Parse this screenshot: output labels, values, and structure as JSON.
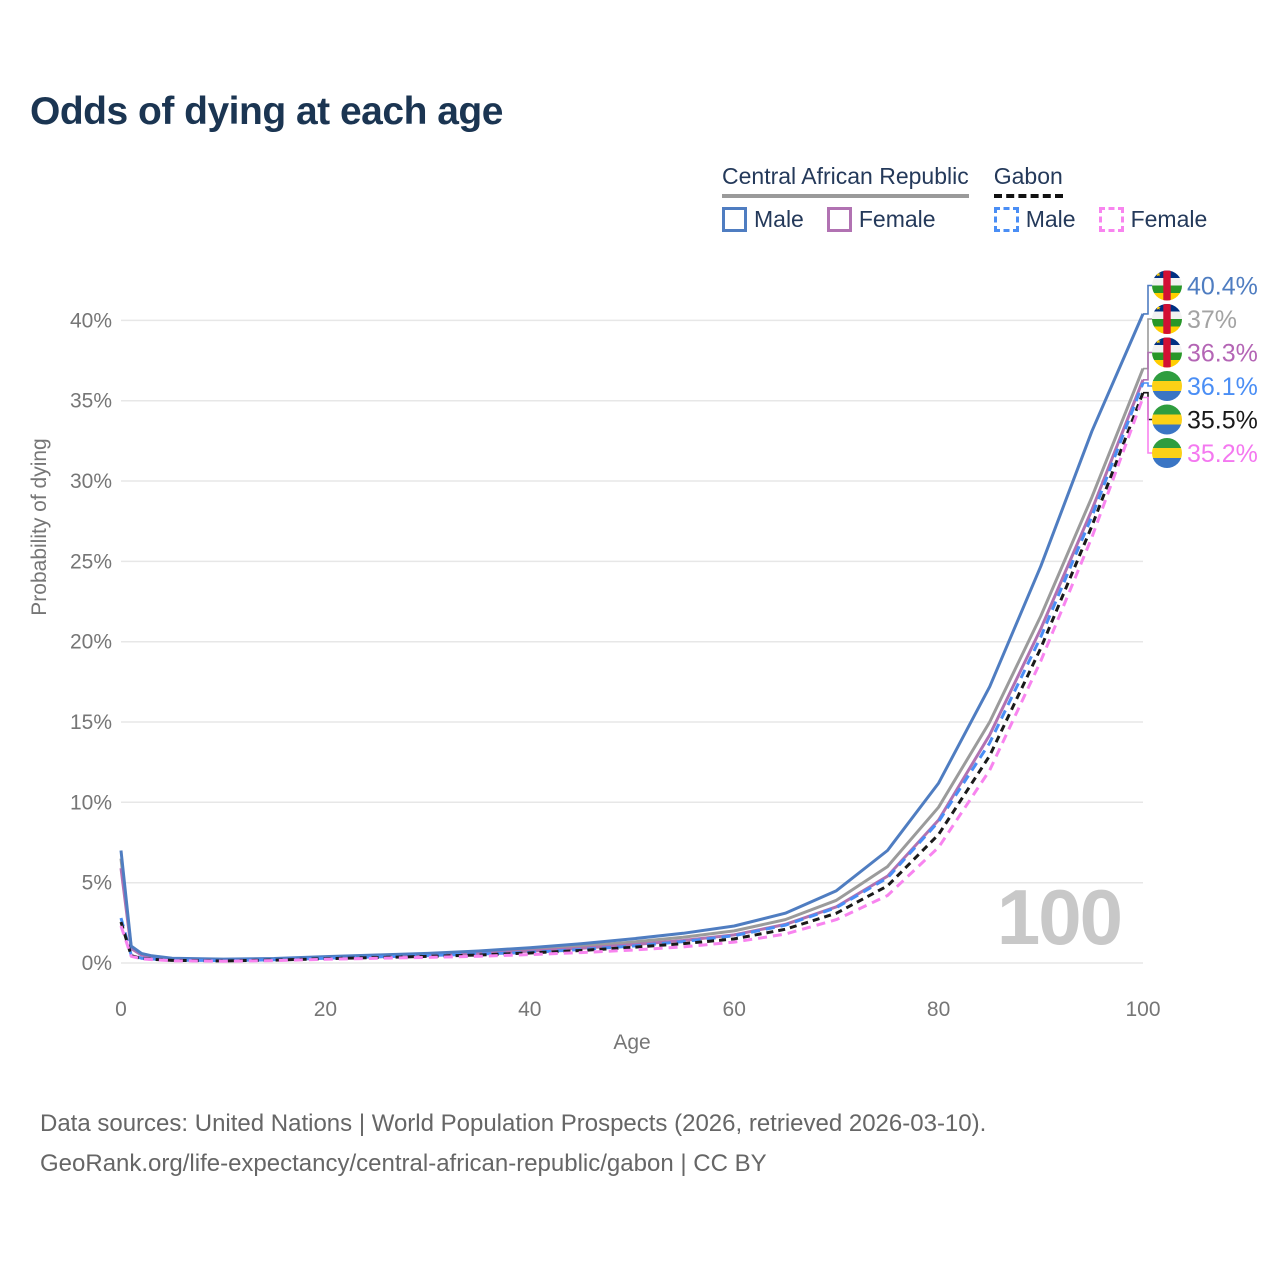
{
  "title": "Odds of dying at each age",
  "watermark": "100",
  "legend": {
    "groups": [
      {
        "name": "Central African Republic",
        "underline": {
          "style": "solid",
          "color": "#9a9a9a"
        },
        "items": [
          {
            "label": "Male",
            "color": "#4f7dc1",
            "dashed": false
          },
          {
            "label": "Female",
            "color": "#b172b2",
            "dashed": false
          }
        ]
      },
      {
        "name": "Gabon",
        "underline": {
          "style": "dashed",
          "color": "#111111"
        },
        "items": [
          {
            "label": "Male",
            "color": "#4a8ef5",
            "dashed": true
          },
          {
            "label": "Female",
            "color": "#f884ef",
            "dashed": true
          }
        ]
      }
    ]
  },
  "chart_data": {
    "type": "line",
    "title": "Odds of dying at each age",
    "xlabel": "Age",
    "ylabel": "Probability of dying",
    "xlim": [
      0,
      100
    ],
    "ylim": [
      0,
      42
    ],
    "xticks": [
      0,
      20,
      40,
      60,
      80,
      100
    ],
    "yticks": [
      {
        "value": 0,
        "label": "0%"
      },
      {
        "value": 5,
        "label": "5%"
      },
      {
        "value": 10,
        "label": "10%"
      },
      {
        "value": 15,
        "label": "15%"
      },
      {
        "value": 20,
        "label": "20%"
      },
      {
        "value": 25,
        "label": "25%"
      },
      {
        "value": 30,
        "label": "30%"
      },
      {
        "value": 35,
        "label": "35%"
      },
      {
        "value": 40,
        "label": "40%"
      }
    ],
    "grid": "horizontal",
    "unit": "percent",
    "legend_position": "top-right",
    "ages": [
      0,
      1,
      2,
      3,
      5,
      10,
      15,
      20,
      25,
      30,
      35,
      40,
      45,
      50,
      55,
      60,
      65,
      70,
      75,
      80,
      85,
      90,
      95,
      100
    ],
    "series": [
      {
        "id": "car-male",
        "country": "Central African Republic",
        "sex": "Male",
        "name": "Central African Republic — Male",
        "color": "#4f7dc1",
        "line_style": "solid",
        "flag": "car",
        "end_label": "40.4%",
        "label_color": "#4f7dc1",
        "values": [
          7.0,
          1.05,
          0.6,
          0.45,
          0.3,
          0.24,
          0.28,
          0.4,
          0.5,
          0.6,
          0.75,
          0.95,
          1.2,
          1.5,
          1.85,
          2.3,
          3.1,
          4.5,
          7.0,
          11.2,
          17.2,
          24.7,
          33.1,
          40.4
        ]
      },
      {
        "id": "car-all",
        "country": "Central African Republic",
        "sex": "Both sexes",
        "name": "Central African Republic — Both sexes",
        "color": "#9b9b9b",
        "line_style": "solid",
        "flag": "car",
        "end_label": "37%",
        "label_color": "#a3a3a3",
        "values": [
          6.5,
          0.95,
          0.55,
          0.4,
          0.27,
          0.21,
          0.25,
          0.36,
          0.45,
          0.54,
          0.66,
          0.84,
          1.05,
          1.3,
          1.6,
          2.0,
          2.7,
          3.9,
          6.0,
          9.7,
          15.0,
          21.6,
          29.0,
          37.0
        ]
      },
      {
        "id": "car-female",
        "country": "Central African Republic",
        "sex": "Female",
        "name": "Central African Republic — Female",
        "color": "#b172b2",
        "line_style": "solid",
        "flag": "car",
        "end_label": "36.3%",
        "label_color": "#b465b5",
        "values": [
          5.9,
          0.9,
          0.5,
          0.37,
          0.25,
          0.19,
          0.22,
          0.32,
          0.4,
          0.48,
          0.58,
          0.74,
          0.92,
          1.13,
          1.4,
          1.75,
          2.4,
          3.5,
          5.4,
          8.9,
          14.2,
          20.8,
          28.2,
          36.3
        ]
      },
      {
        "id": "gabon-male",
        "country": "Gabon",
        "sex": "Male",
        "name": "Gabon — Male",
        "color": "#4a8ef5",
        "line_style": "dashed",
        "flag": "gabon",
        "end_label": "36.1%",
        "label_color": "#4a8ef5",
        "values": [
          2.8,
          0.5,
          0.3,
          0.25,
          0.18,
          0.15,
          0.2,
          0.3,
          0.38,
          0.46,
          0.56,
          0.66,
          0.84,
          1.05,
          1.33,
          1.7,
          2.35,
          3.45,
          5.3,
          8.8,
          13.7,
          20.3,
          27.8,
          36.1
        ]
      },
      {
        "id": "gabon-all",
        "country": "Gabon",
        "sex": "Both sexes",
        "name": "Gabon — Both sexes",
        "color": "#1a1a1a",
        "line_style": "dashed",
        "flag": "gabon",
        "end_label": "35.5%",
        "label_color": "#1a1a1a",
        "values": [
          2.55,
          0.46,
          0.28,
          0.23,
          0.16,
          0.13,
          0.18,
          0.27,
          0.34,
          0.41,
          0.5,
          0.62,
          0.78,
          0.97,
          1.2,
          1.5,
          2.1,
          3.1,
          4.8,
          8.0,
          12.9,
          19.6,
          27.2,
          35.5
        ]
      },
      {
        "id": "gabon-female",
        "country": "Gabon",
        "sex": "Female",
        "name": "Gabon — Female",
        "color": "#f884ef",
        "line_style": "dashed",
        "flag": "gabon",
        "end_label": "35.2%",
        "label_color": "#f478f0",
        "values": [
          2.3,
          0.42,
          0.26,
          0.21,
          0.14,
          0.11,
          0.15,
          0.23,
          0.29,
          0.35,
          0.42,
          0.52,
          0.65,
          0.8,
          1.0,
          1.3,
          1.8,
          2.7,
          4.2,
          7.2,
          12.0,
          18.8,
          26.5,
          35.2
        ]
      }
    ]
  },
  "footer": {
    "line1": "Data sources: United Nations | World Population Prospects (2026, retrieved 2026-03-10).",
    "line2": "GeoRank.org/life-expectancy/central-african-republic/gabon | CC BY"
  }
}
